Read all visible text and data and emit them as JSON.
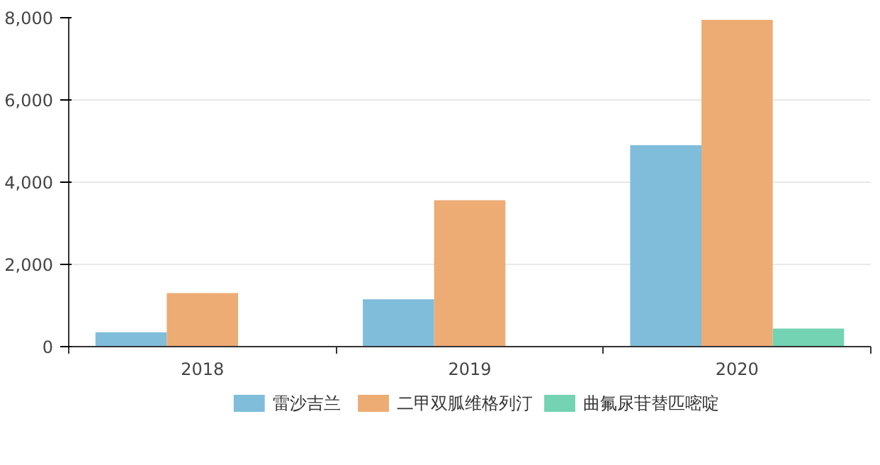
{
  "chart_data": {
    "type": "bar",
    "categories": [
      "2018",
      "2019",
      "2020"
    ],
    "series": [
      {
        "name": "雷沙吉兰",
        "color": "#7fbddb",
        "values": [
          350,
          1150,
          4900
        ]
      },
      {
        "name": "二甲双胍维格列汀",
        "color": "#edac74",
        "values": [
          1300,
          3560,
          7950
        ]
      },
      {
        "name": "曲氟尿苷替匹嘧啶",
        "color": "#74d3b2",
        "values": [
          null,
          null,
          440
        ]
      }
    ],
    "ylim": [
      0,
      8000
    ],
    "yticks": [
      0,
      {
        "value": 2000,
        "label": "2,000"
      },
      {
        "value": 4000,
        "label": "4,000"
      },
      {
        "value": 6000,
        "label": "6,000"
      },
      {
        "value": 8000,
        "label": "8,000"
      }
    ],
    "grid": "y",
    "legend": "bottom"
  }
}
